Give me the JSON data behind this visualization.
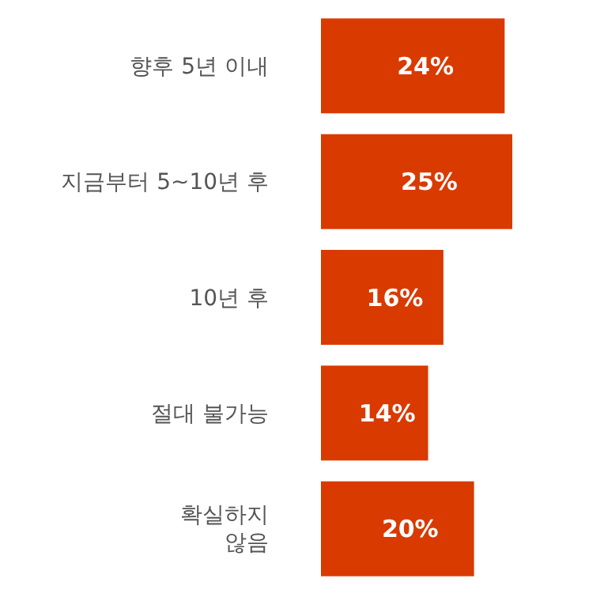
{
  "chart_data": {
    "type": "bar",
    "orientation": "horizontal",
    "categories": [
      "향후 5년 이내",
      "지금부터 5~10년 후",
      "10년 후",
      "절대 불가능",
      "확실하지\n않음"
    ],
    "values": [
      24,
      25,
      16,
      14,
      20
    ],
    "value_labels": [
      "24%",
      "25%",
      "16%",
      "14%",
      "20%"
    ],
    "color": "#d93a00"
  }
}
